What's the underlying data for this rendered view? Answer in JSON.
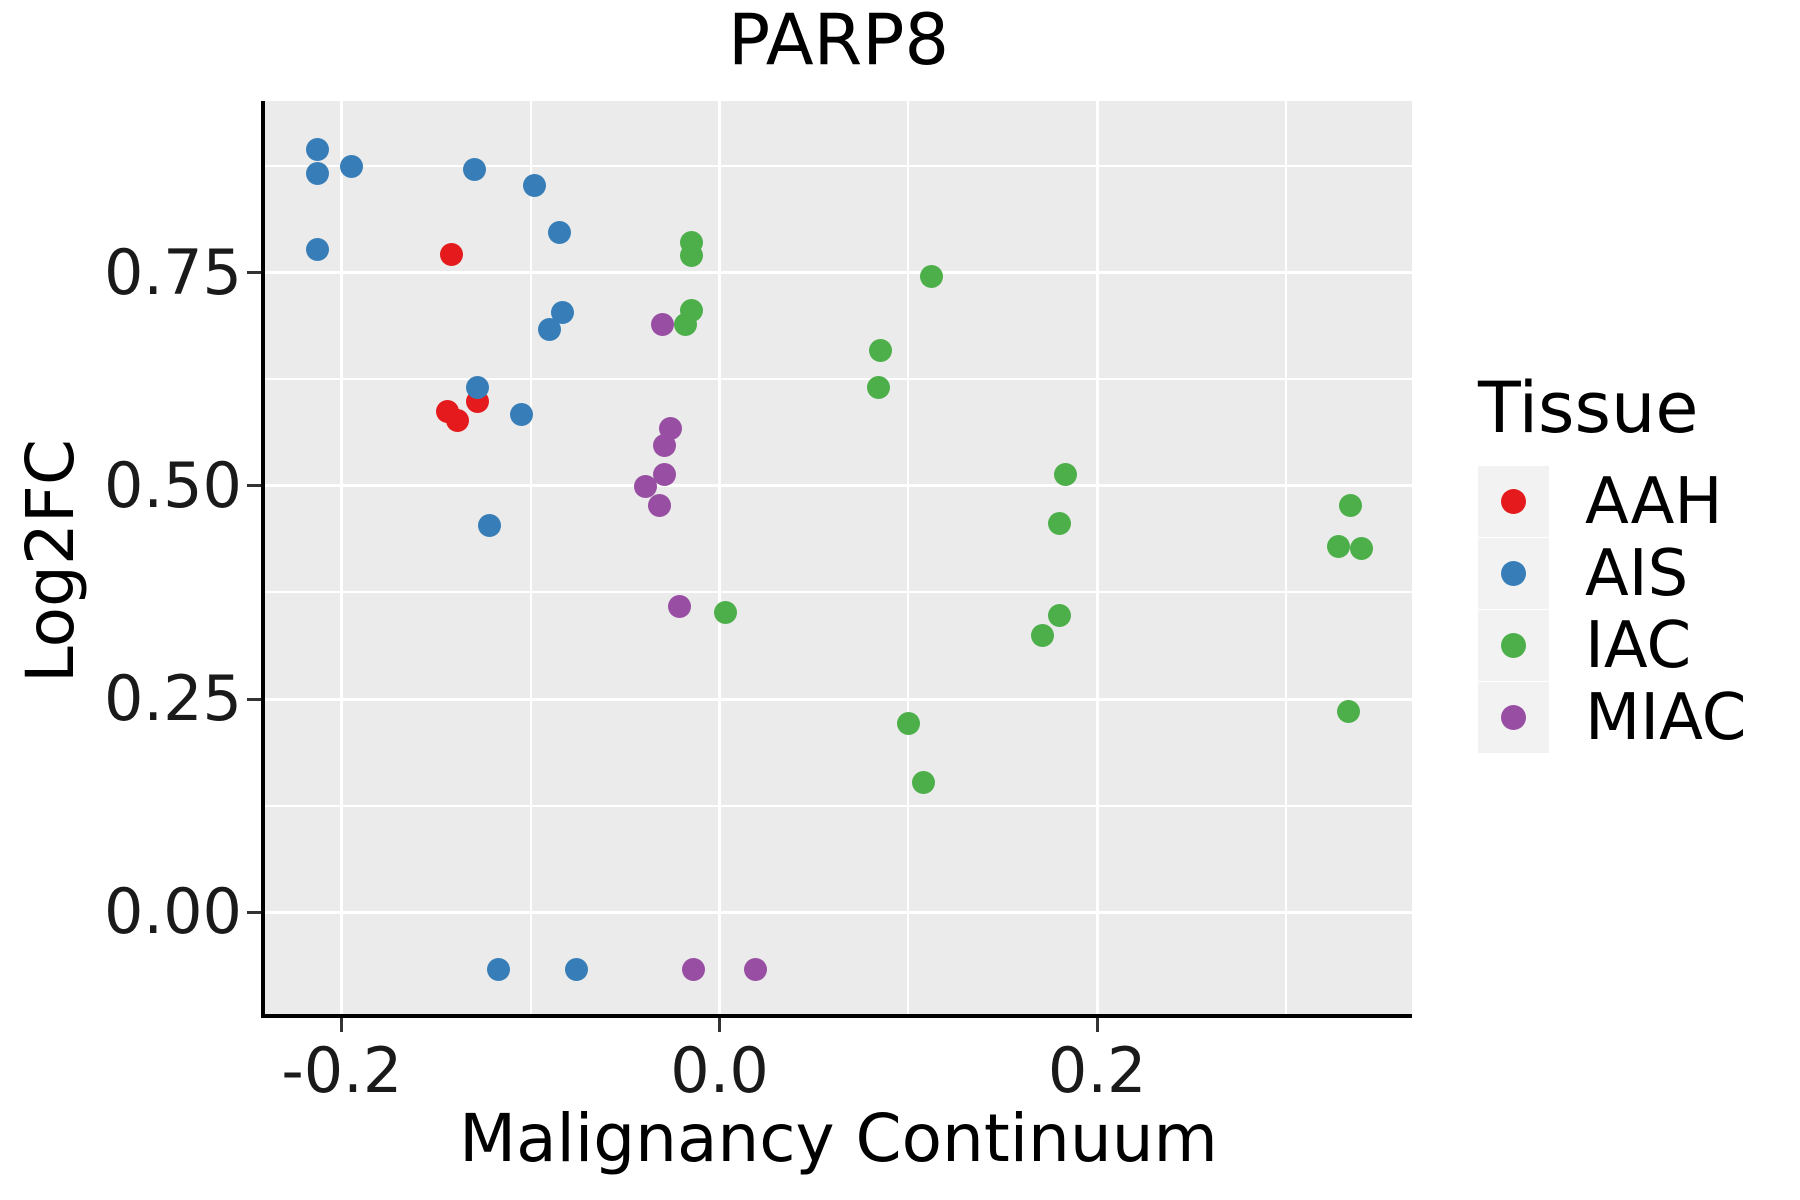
{
  "title": "PARP8",
  "axes": {
    "x_label": "Malignancy Continuum",
    "y_label": "Log2FC"
  },
  "legend": {
    "title": "Tissue",
    "items": [
      {
        "label": "AAH",
        "color": "#E41A1C"
      },
      {
        "label": "AIS",
        "color": "#377EB8"
      },
      {
        "label": "IAC",
        "color": "#4DAF4A"
      },
      {
        "label": "MIAC",
        "color": "#984EA3"
      }
    ]
  },
  "colors": {
    "panel_background": "#EBEBEB",
    "gridline": "#FFFFFF",
    "axis_line": "#000000",
    "tick_mark": "#333333",
    "legend_key_background": "#F2F2F2"
  },
  "chart_data": {
    "type": "scatter",
    "title": "PARP8",
    "xlabel": "Malignancy Continuum",
    "ylabel": "Log2FC",
    "xlim": [
      -0.2407,
      0.3667
    ],
    "ylim": [
      -0.119,
      0.951
    ],
    "x_major_ticks": [
      -0.2,
      0.0,
      0.2
    ],
    "x_tick_labels": [
      "-0.2",
      "0.0",
      "0.2"
    ],
    "x_minor_ticks": [
      -0.1,
      0.1,
      0.3
    ],
    "y_major_ticks": [
      0.0,
      0.25,
      0.5,
      0.75
    ],
    "y_tick_labels": [
      "0.00",
      "0.25",
      "0.50",
      "0.75"
    ],
    "y_minor_ticks": [
      0.125,
      0.375,
      0.625,
      0.875
    ],
    "grid": true,
    "legend_position": "right",
    "series": [
      {
        "name": "AAH",
        "color": "#E41A1C",
        "points": [
          [
            -0.142,
            0.771
          ],
          [
            -0.144,
            0.587
          ],
          [
            -0.139,
            0.577
          ],
          [
            -0.128,
            0.599
          ]
        ]
      },
      {
        "name": "AIS",
        "color": "#377EB8",
        "points": [
          [
            -0.213,
            0.894
          ],
          [
            -0.213,
            0.866
          ],
          [
            -0.195,
            0.874
          ],
          [
            -0.13,
            0.871
          ],
          [
            -0.098,
            0.852
          ],
          [
            -0.085,
            0.797
          ],
          [
            -0.213,
            0.777
          ],
          [
            -0.083,
            0.703
          ],
          [
            -0.09,
            0.683
          ],
          [
            -0.128,
            0.615
          ],
          [
            -0.105,
            0.584
          ],
          [
            -0.122,
            0.453
          ],
          [
            -0.117,
            -0.067
          ],
          [
            -0.076,
            -0.067
          ]
        ]
      },
      {
        "name": "IAC",
        "color": "#4DAF4A",
        "points": [
          [
            -0.015,
            0.785
          ],
          [
            -0.015,
            0.77
          ],
          [
            -0.015,
            0.706
          ],
          [
            -0.018,
            0.689
          ],
          [
            0.112,
            0.745
          ],
          [
            0.085,
            0.659
          ],
          [
            0.084,
            0.615
          ],
          [
            0.003,
            0.351
          ],
          [
            0.183,
            0.513
          ],
          [
            0.18,
            0.456
          ],
          [
            0.18,
            0.348
          ],
          [
            0.171,
            0.325
          ],
          [
            0.1,
            0.221
          ],
          [
            0.108,
            0.152
          ],
          [
            0.334,
            0.477
          ],
          [
            0.328,
            0.429
          ],
          [
            0.34,
            0.427
          ],
          [
            0.333,
            0.235
          ]
        ]
      },
      {
        "name": "MIAC",
        "color": "#984EA3",
        "points": [
          [
            -0.03,
            0.689
          ],
          [
            -0.026,
            0.567
          ],
          [
            -0.029,
            0.547
          ],
          [
            -0.029,
            0.513
          ],
          [
            -0.039,
            0.499
          ],
          [
            -0.032,
            0.477
          ],
          [
            -0.021,
            0.358
          ],
          [
            -0.014,
            -0.067
          ],
          [
            0.019,
            -0.067
          ]
        ]
      }
    ]
  }
}
